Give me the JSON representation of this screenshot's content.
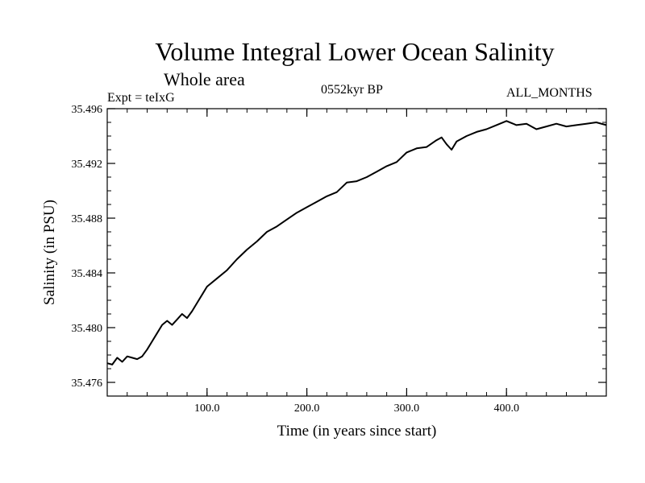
{
  "header": {
    "title": "Volume Integral Lower Ocean Salinity",
    "subtitle": "Whole area",
    "expt": "Expt = teIxG",
    "date": "0552kyr BP",
    "months": "ALL_MONTHS"
  },
  "chart_data": {
    "type": "line",
    "title": "Volume Integral Lower Ocean Salinity",
    "subtitle": "Whole area",
    "xlabel": "Time (in years since start)",
    "ylabel": "Salinity (in PSU)",
    "xlim": [
      0,
      500
    ],
    "ylim": [
      35.475,
      35.496
    ],
    "x_ticks": [
      100,
      200,
      300,
      400
    ],
    "x_tick_labels": [
      "100.0",
      "200.0",
      "300.0",
      "400.0"
    ],
    "y_ticks": [
      35.476,
      35.48,
      35.484,
      35.488,
      35.492,
      35.496
    ],
    "y_tick_labels": [
      "35.476",
      "35.480",
      "35.484",
      "35.488",
      "35.492",
      "35.496"
    ],
    "grid": false,
    "legend": "none",
    "line_color": "#000000",
    "series": [
      {
        "x": [
          0,
          5,
          10,
          15,
          20,
          25,
          30,
          35,
          40,
          45,
          50,
          55,
          60,
          65,
          70,
          75,
          80,
          85,
          90,
          95,
          100,
          110,
          120,
          130,
          140,
          150,
          160,
          170,
          180,
          190,
          200,
          210,
          220,
          230,
          240,
          250,
          260,
          270,
          280,
          290,
          300,
          310,
          320,
          330,
          335,
          340,
          345,
          350,
          360,
          370,
          380,
          390,
          400,
          410,
          420,
          430,
          440,
          450,
          460,
          470,
          480,
          490,
          500
        ],
        "y": [
          35.4774,
          35.4773,
          35.4778,
          35.4775,
          35.4779,
          35.4778,
          35.4777,
          35.4779,
          35.4784,
          35.479,
          35.4796,
          35.4802,
          35.4805,
          35.4802,
          35.4806,
          35.481,
          35.4807,
          35.4812,
          35.4818,
          35.4824,
          35.483,
          35.4836,
          35.4842,
          35.485,
          35.4857,
          35.4863,
          35.487,
          35.4874,
          35.4879,
          35.4884,
          35.4888,
          35.4892,
          35.4896,
          35.4899,
          35.4906,
          35.4907,
          35.491,
          35.4914,
          35.4918,
          35.4921,
          35.4928,
          35.4931,
          35.4932,
          35.4937,
          35.4939,
          35.4934,
          35.493,
          35.4936,
          35.494,
          35.4943,
          35.4945,
          35.4948,
          35.4951,
          35.4948,
          35.4949,
          35.4945,
          35.4947,
          35.4949,
          35.4947,
          35.4948,
          35.4949,
          35.495,
          35.4948
        ]
      }
    ]
  }
}
